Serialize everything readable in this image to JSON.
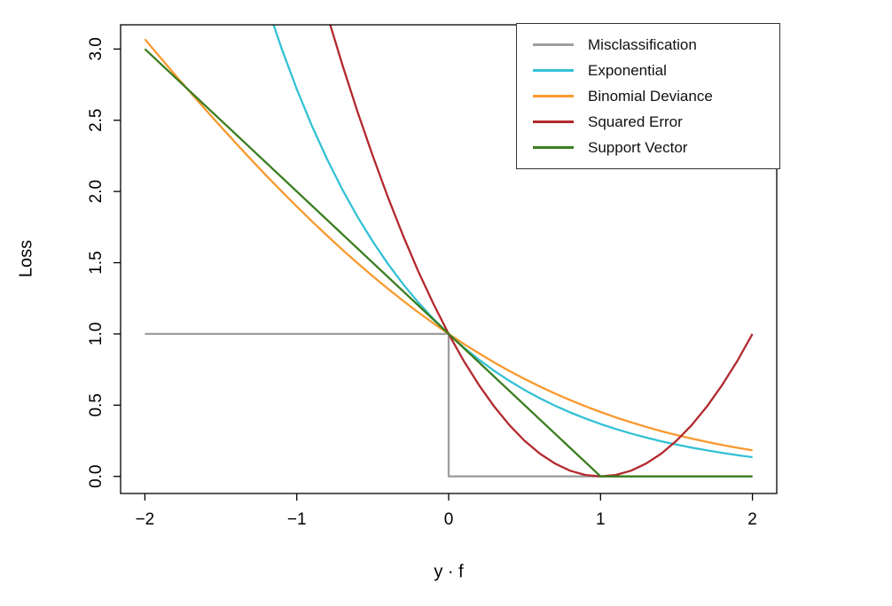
{
  "chart_data": {
    "type": "line",
    "title": "",
    "xlabel": "y · f",
    "ylabel": "Loss",
    "xlim": [
      -2.16,
      2.16
    ],
    "ylim": [
      -0.12,
      3.17
    ],
    "grid": false,
    "legend_position": "top-right",
    "axis_color": "#000000",
    "x_ticks": {
      "values": [
        -2,
        -1,
        0,
        1,
        2
      ],
      "labels": [
        "−2",
        "−1",
        "0",
        "1",
        "2"
      ]
    },
    "y_ticks": {
      "values": [
        0,
        0.5,
        1,
        1.5,
        2,
        2.5,
        3
      ],
      "labels": [
        "0.0",
        "0.5",
        "1.0",
        "1.5",
        "2.0",
        "2.5",
        "3.0"
      ]
    },
    "series": [
      {
        "name": "Misclassification",
        "color": "#9e9e9e",
        "points": [
          [
            -2,
            1
          ],
          [
            0,
            1
          ],
          [
            0,
            0
          ],
          [
            2,
            0
          ]
        ]
      },
      {
        "name": "Exponential",
        "color": "#33c1d4",
        "points": [
          [
            -1.2,
            3.3201
          ],
          [
            -1.1,
            3.0042
          ],
          [
            -1.0,
            2.7183
          ],
          [
            -0.9,
            2.4596
          ],
          [
            -0.8,
            2.2255
          ],
          [
            -0.7,
            2.0138
          ],
          [
            -0.6,
            1.8221
          ],
          [
            -0.5,
            1.6487
          ],
          [
            -0.4,
            1.4918
          ],
          [
            -0.3,
            1.3499
          ],
          [
            -0.2,
            1.2214
          ],
          [
            -0.1,
            1.1052
          ],
          [
            0,
            1
          ],
          [
            0.1,
            0.9048
          ],
          [
            0.2,
            0.8187
          ],
          [
            0.3,
            0.7408
          ],
          [
            0.4,
            0.6703
          ],
          [
            0.5,
            0.6065
          ],
          [
            0.6,
            0.5488
          ],
          [
            0.7,
            0.4966
          ],
          [
            0.8,
            0.4493
          ],
          [
            0.9,
            0.4066
          ],
          [
            1,
            0.3679
          ],
          [
            1.1,
            0.3329
          ],
          [
            1.2,
            0.3012
          ],
          [
            1.3,
            0.2725
          ],
          [
            1.4,
            0.2466
          ],
          [
            1.5,
            0.2231
          ],
          [
            1.6,
            0.2019
          ],
          [
            1.7,
            0.1827
          ],
          [
            1.8,
            0.1653
          ],
          [
            1.9,
            0.1496
          ],
          [
            2,
            0.1353
          ]
        ]
      },
      {
        "name": "Binomial Deviance",
        "color": "#f9992f",
        "points": [
          [
            -2,
            3.0684
          ],
          [
            -1.9,
            2.9423
          ],
          [
            -1.8,
            2.8175
          ],
          [
            -1.7,
            2.6947
          ],
          [
            -1.6,
            2.5736
          ],
          [
            -1.5,
            2.4546
          ],
          [
            -1.4,
            2.3377
          ],
          [
            -1.3,
            2.2233
          ],
          [
            -1.2,
            2.1111
          ],
          [
            -1.1,
            2.0015
          ],
          [
            -1.0,
            1.8946
          ],
          [
            -0.9,
            1.7908
          ],
          [
            -0.8,
            1.6897
          ],
          [
            -0.7,
            1.5916
          ],
          [
            -0.6,
            1.4968
          ],
          [
            -0.5,
            1.4054
          ],
          [
            -0.4,
            1.3172
          ],
          [
            -0.3,
            1.2327
          ],
          [
            -0.2,
            1.1516
          ],
          [
            -0.1,
            1.074
          ],
          [
            0,
            1
          ],
          [
            0.1,
            0.9297
          ],
          [
            0.2,
            0.863
          ],
          [
            0.3,
            0.7999
          ],
          [
            0.4,
            0.7402
          ],
          [
            0.5,
            0.684
          ],
          [
            0.6,
            0.6312
          ],
          [
            0.7,
            0.5817
          ],
          [
            0.8,
            0.5354
          ],
          [
            0.9,
            0.4922
          ],
          [
            1,
            0.452
          ],
          [
            1.1,
            0.4145
          ],
          [
            1.2,
            0.3798
          ],
          [
            1.3,
            0.3477
          ],
          [
            1.4,
            0.318
          ],
          [
            1.5,
            0.2905
          ],
          [
            1.6,
            0.2653
          ],
          [
            1.7,
            0.2421
          ],
          [
            1.8,
            0.2207
          ],
          [
            1.9,
            0.2011
          ],
          [
            2,
            0.1831
          ]
        ]
      },
      {
        "name": "Squared Error",
        "color": "#b2292e",
        "points": [
          [
            -0.8,
            3.24
          ],
          [
            -0.7,
            2.89
          ],
          [
            -0.6,
            2.56
          ],
          [
            -0.5,
            2.25
          ],
          [
            -0.4,
            1.96
          ],
          [
            -0.3,
            1.69
          ],
          [
            -0.2,
            1.44
          ],
          [
            -0.1,
            1.21
          ],
          [
            0,
            1
          ],
          [
            0.1,
            0.81
          ],
          [
            0.2,
            0.64
          ],
          [
            0.3,
            0.49
          ],
          [
            0.4,
            0.36
          ],
          [
            0.5,
            0.25
          ],
          [
            0.6,
            0.16
          ],
          [
            0.7,
            0.09
          ],
          [
            0.8,
            0.04
          ],
          [
            0.9,
            0.01
          ],
          [
            1,
            0
          ],
          [
            1.1,
            0.01
          ],
          [
            1.2,
            0.04
          ],
          [
            1.3,
            0.09
          ],
          [
            1.4,
            0.16
          ],
          [
            1.5,
            0.25
          ],
          [
            1.6,
            0.36
          ],
          [
            1.7,
            0.49
          ],
          [
            1.8,
            0.64
          ],
          [
            1.9,
            0.81
          ],
          [
            2,
            1
          ]
        ]
      },
      {
        "name": "Support Vector",
        "color": "#3b7d1f",
        "points": [
          [
            -2,
            3
          ],
          [
            1,
            0
          ],
          [
            2,
            0
          ]
        ]
      }
    ]
  }
}
